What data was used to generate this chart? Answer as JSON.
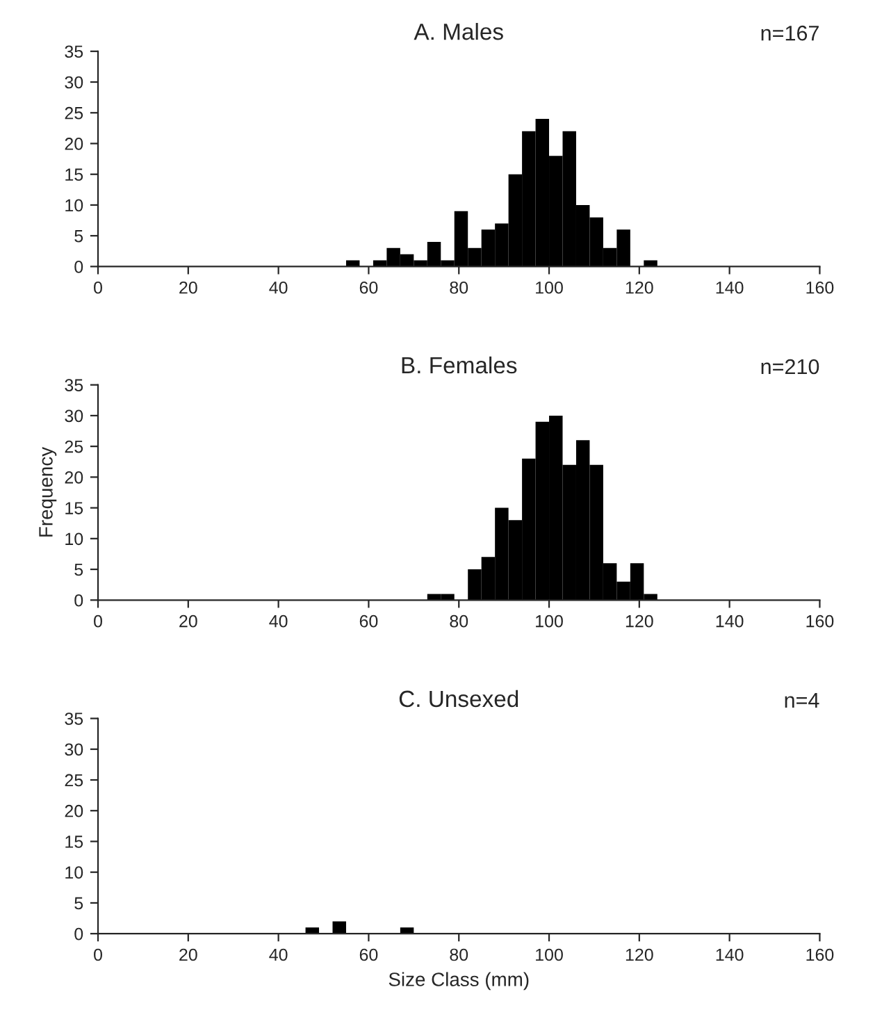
{
  "chart_data": [
    {
      "type": "histogram",
      "title": "A. Males",
      "annotations": [
        "n=167"
      ],
      "bins": [
        46,
        49,
        52,
        55,
        58,
        61,
        64,
        67,
        70,
        73,
        76,
        79,
        82,
        85,
        88,
        91,
        94,
        97,
        100,
        103,
        106,
        109,
        112,
        115,
        118,
        121,
        124
      ],
      "values": [
        0,
        0,
        0,
        1,
        0,
        1,
        3,
        2,
        1,
        4,
        1,
        9,
        3,
        6,
        7,
        15,
        22,
        24,
        18,
        22,
        10,
        8,
        3,
        6,
        0,
        1
      ],
      "color": "#000000",
      "xlim": [
        0,
        160
      ],
      "xticks": [
        0,
        20,
        40,
        60,
        80,
        100,
        120,
        140,
        160
      ],
      "ylim": [
        0,
        35
      ],
      "yticks": [
        0,
        5,
        10,
        15,
        20,
        25,
        30,
        35
      ],
      "grid": false
    },
    {
      "type": "histogram",
      "title": "B. Females",
      "ylabel": "Frequency",
      "annotations": [
        "n=210"
      ],
      "bins": [
        46,
        49,
        52,
        55,
        58,
        61,
        64,
        67,
        70,
        73,
        76,
        79,
        82,
        85,
        88,
        91,
        94,
        97,
        100,
        103,
        106,
        109,
        112,
        115,
        118,
        121,
        124
      ],
      "values": [
        0,
        0,
        0,
        0,
        0,
        0,
        0,
        0,
        0,
        1,
        1,
        0,
        5,
        7,
        15,
        13,
        23,
        29,
        30,
        22,
        26,
        22,
        6,
        3,
        6,
        1
      ],
      "color": "#000000",
      "xlim": [
        0,
        160
      ],
      "xticks": [
        0,
        20,
        40,
        60,
        80,
        100,
        120,
        140,
        160
      ],
      "ylim": [
        0,
        35
      ],
      "yticks": [
        0,
        5,
        10,
        15,
        20,
        25,
        30,
        35
      ],
      "grid": false
    },
    {
      "type": "histogram",
      "title": "C. Unsexed",
      "xlabel": "Size Class (mm)",
      "annotations": [
        "n=4"
      ],
      "bins": [
        46,
        49,
        52,
        55,
        58,
        61,
        64,
        67,
        70,
        73,
        76,
        79,
        82,
        85,
        88,
        91,
        94,
        97,
        100,
        103,
        106,
        109,
        112,
        115,
        118,
        121,
        124
      ],
      "values": [
        1,
        0,
        2,
        0,
        0,
        0,
        0,
        1,
        0,
        0,
        0,
        0,
        0,
        0,
        0,
        0,
        0,
        0,
        0,
        0,
        0,
        0,
        0,
        0,
        0,
        0
      ],
      "color": "#000000",
      "xlim": [
        0,
        160
      ],
      "xticks": [
        0,
        20,
        40,
        60,
        80,
        100,
        120,
        140,
        160
      ],
      "ylim": [
        0,
        35
      ],
      "yticks": [
        0,
        5,
        10,
        15,
        20,
        25,
        30,
        35
      ],
      "grid": false
    }
  ]
}
